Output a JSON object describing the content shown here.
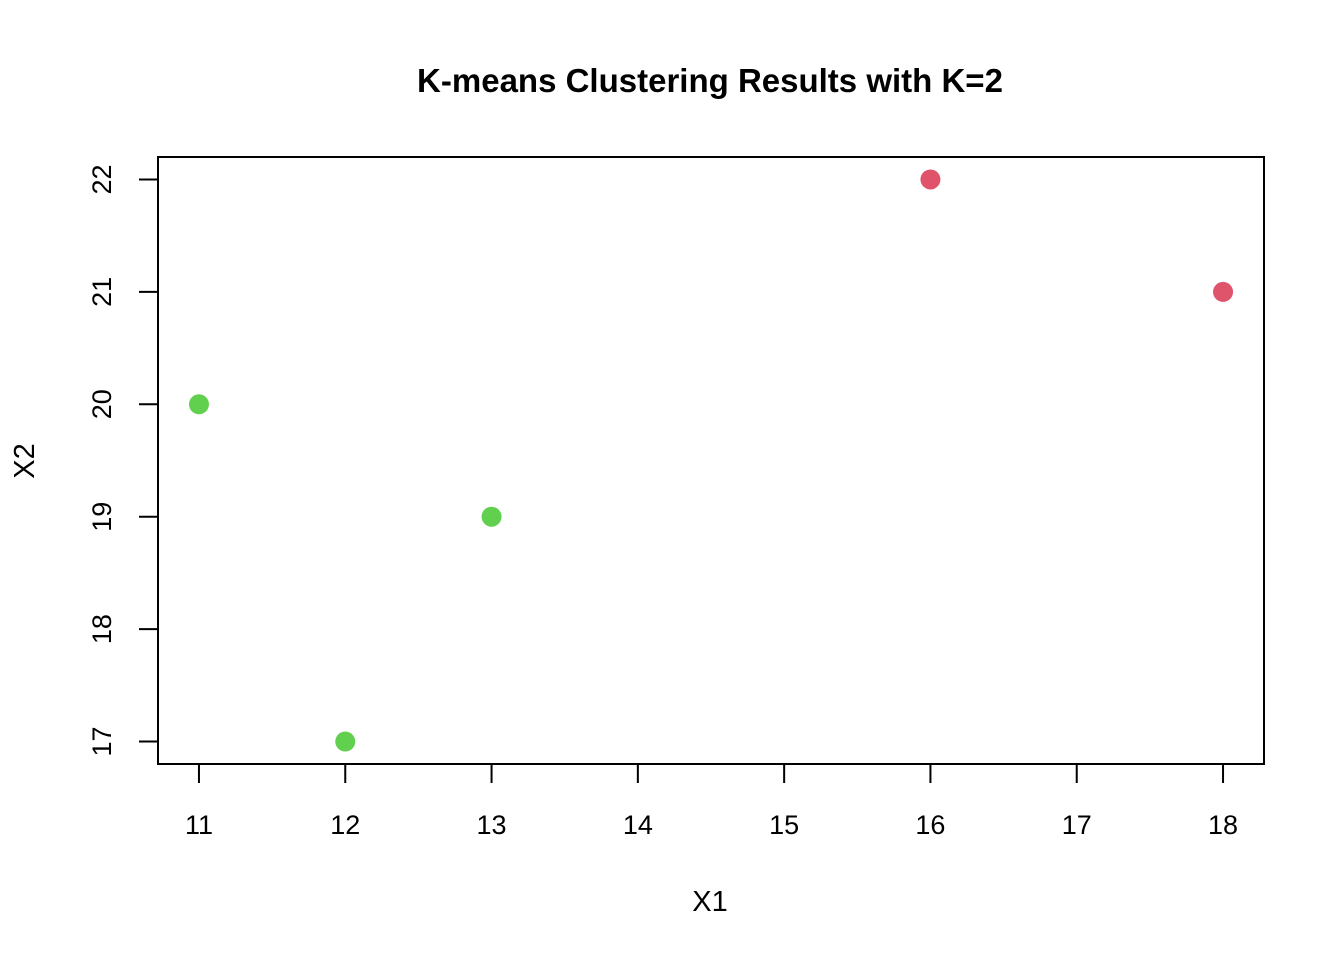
{
  "chart_data": {
    "type": "scatter",
    "title": "K-means Clustering Results with K=2",
    "xlabel": "X1",
    "ylabel": "X2",
    "xlim": [
      10.72,
      18.28
    ],
    "ylim": [
      16.8,
      22.2
    ],
    "xticks": [
      11,
      12,
      13,
      14,
      15,
      16,
      17,
      18
    ],
    "yticks": [
      17,
      18,
      19,
      20,
      21,
      22
    ],
    "grid": false,
    "legend": "none",
    "series": [
      {
        "color": "#DF536B",
        "points": [
          {
            "x": 16,
            "y": 22
          },
          {
            "x": 18,
            "y": 21
          }
        ]
      },
      {
        "color": "#61D04F",
        "points": [
          {
            "x": 11,
            "y": 20
          },
          {
            "x": 12,
            "y": 17
          },
          {
            "x": 13,
            "y": 19
          }
        ]
      }
    ]
  }
}
